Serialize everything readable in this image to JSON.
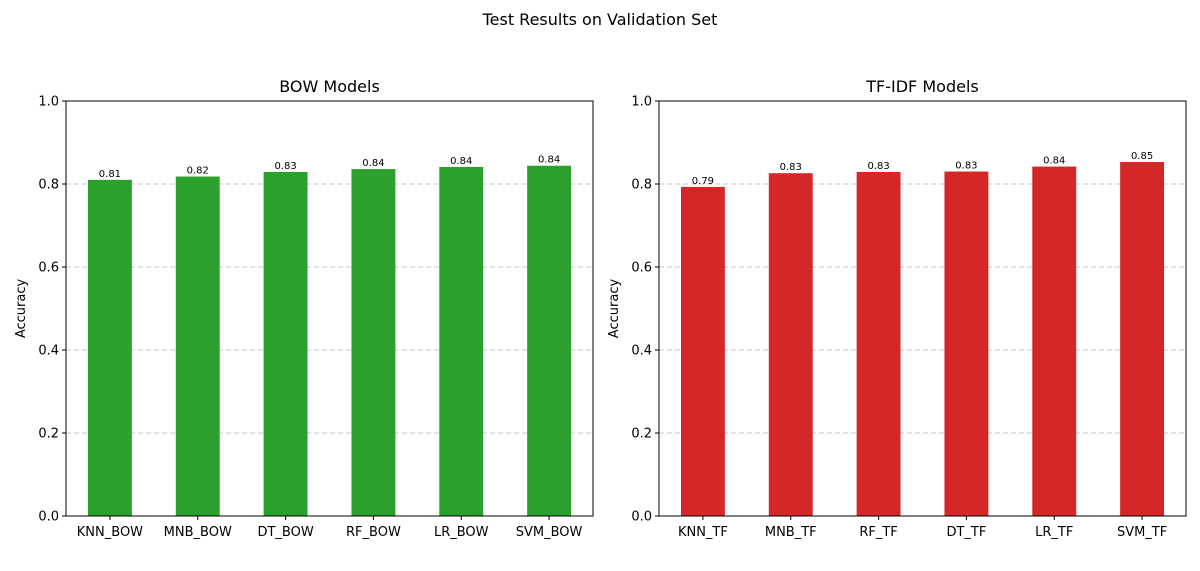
{
  "figure": {
    "suptitle": "Test Results on Validation Set"
  },
  "chart_data": [
    {
      "type": "bar",
      "title": "BOW Models",
      "xlabel": "",
      "ylabel": "Accuracy",
      "ylim": [
        0,
        1.0
      ],
      "yticks": [
        "0.0",
        "0.2",
        "0.4",
        "0.6",
        "0.8",
        "1.0"
      ],
      "grid": "y-dashed",
      "color": "#2ca02c",
      "categories": [
        "KNN_BOW",
        "MNB_BOW",
        "DT_BOW",
        "RF_BOW",
        "LR_BOW",
        "SVM_BOW"
      ],
      "values": [
        0.81,
        0.818,
        0.829,
        0.836,
        0.841,
        0.844
      ],
      "data_labels": [
        "0.81",
        "0.82",
        "0.83",
        "0.84",
        "0.84",
        "0.84"
      ]
    },
    {
      "type": "bar",
      "title": "TF-IDF Models",
      "xlabel": "",
      "ylabel": "Accuracy",
      "ylim": [
        0,
        1.0
      ],
      "yticks": [
        "0.0",
        "0.2",
        "0.4",
        "0.6",
        "0.8",
        "1.0"
      ],
      "grid": "y-dashed",
      "color": "#d62728",
      "categories": [
        "KNN_TF",
        "MNB_TF",
        "RF_TF",
        "DT_TF",
        "LR_TF",
        "SVM_TF"
      ],
      "values": [
        0.793,
        0.826,
        0.829,
        0.83,
        0.842,
        0.853
      ],
      "data_labels": [
        "0.79",
        "0.83",
        "0.83",
        "0.83",
        "0.84",
        "0.85"
      ]
    }
  ]
}
